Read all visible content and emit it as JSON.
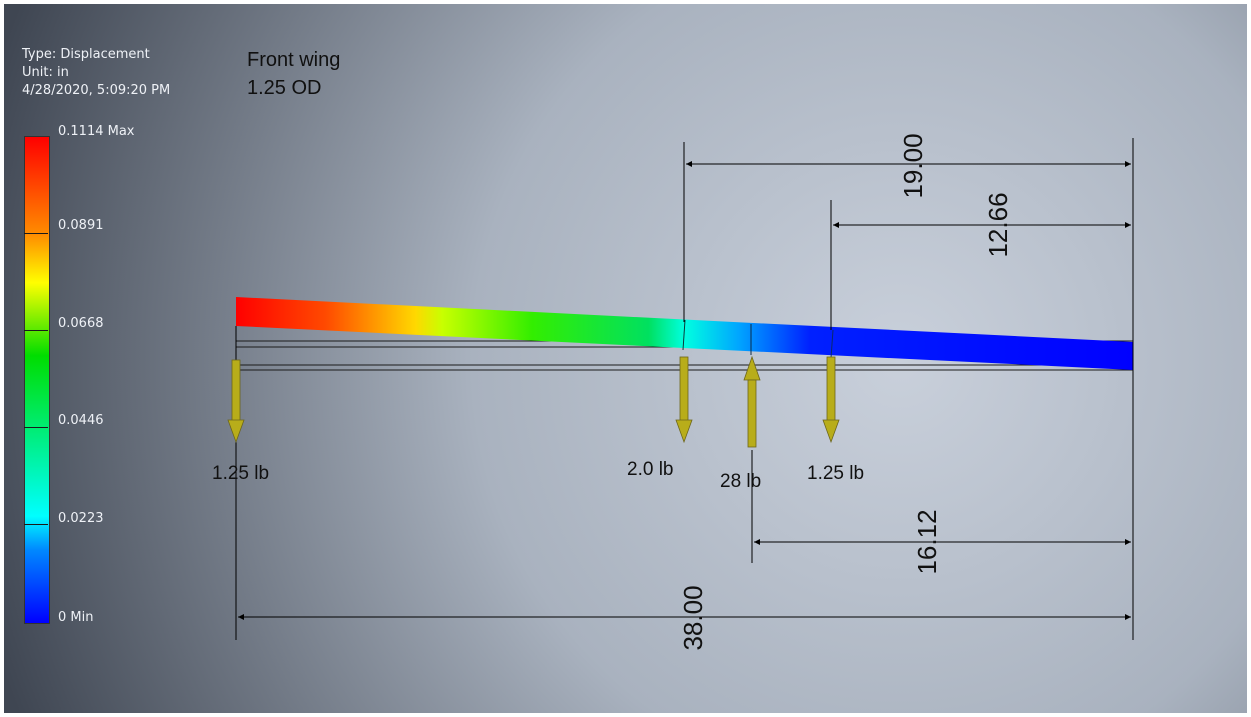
{
  "legend": {
    "type_text": "Type: Displacement",
    "unit_text": "Unit: in",
    "timestamp": "4/28/2020, 5:09:20 PM",
    "max_label": "0.1114 Max",
    "ticks": [
      "0.0891",
      "0.0668",
      "0.0446",
      "0.0223"
    ],
    "min_label": "0 Min",
    "colors": [
      "#ff0000",
      "#ff8000",
      "#ffff00",
      "#00e000",
      "#00ffff",
      "#0000ff"
    ]
  },
  "title": {
    "line1": "Front wing",
    "line2": "1.25 OD"
  },
  "loads": [
    {
      "label": "1.25 lb",
      "direction": "down"
    },
    {
      "label": "2.0 lb",
      "direction": "down"
    },
    {
      "label": "28 lb",
      "direction": "up"
    },
    {
      "label": "1.25 lb",
      "direction": "down"
    }
  ],
  "dimensions": {
    "overall": "38.00",
    "d19": "19.00",
    "d1266": "12.66",
    "d1612": "16.12"
  },
  "colors": {
    "background_light": "#c3cbd6",
    "background_dark": "#4a5260",
    "arrow": "#b8ad1a",
    "dim_line": "#000000"
  }
}
